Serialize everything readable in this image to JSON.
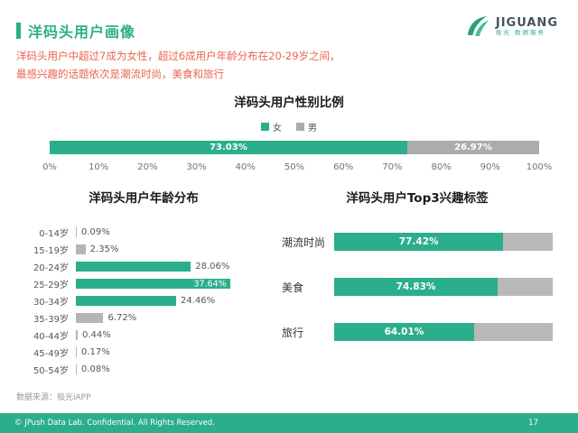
{
  "colors": {
    "teal": "#2BAE8C",
    "orange": "#E8664D",
    "gray_bar": "#B5B5B5"
  },
  "header": {
    "title": "洋码头用户画像",
    "subtitle_line1": "洋码头用户中超过7成为女性，超过6成用户年龄分布在20-29岁之间，",
    "subtitle_line2": "最感兴趣的话题依次是潮流时尚，美食和旅行"
  },
  "logo": {
    "brand": "JIGUANG",
    "tagline": "极光 数据服务"
  },
  "gender_chart": {
    "title": "洋码头用户性别比例",
    "legend": [
      {
        "label": "女",
        "color": "#2BAE8C"
      },
      {
        "label": "男",
        "color": "#ACACAC"
      }
    ],
    "female": {
      "pct": 73.03,
      "pct_label": "73.03%"
    },
    "male": {
      "pct": 26.97,
      "pct_label": "26.97%"
    },
    "axis_ticks": [
      "0%",
      "10%",
      "20%",
      "30%",
      "40%",
      "50%",
      "60%",
      "70%",
      "80%",
      "90%",
      "100%"
    ]
  },
  "age_chart": {
    "title": "洋码头用户年龄分布",
    "rows": [
      {
        "label": "0-14岁",
        "value": "0.09%",
        "pct": 0.09
      },
      {
        "label": "15-19岁",
        "value": "2.35%",
        "pct": 2.35
      },
      {
        "label": "20-24岁",
        "value": "28.06%",
        "pct": 28.06
      },
      {
        "label": "25-29岁",
        "value": "37.64%",
        "pct": 37.64
      },
      {
        "label": "30-34岁",
        "value": "24.46%",
        "pct": 24.46
      },
      {
        "label": "35-39岁",
        "value": "6.72%",
        "pct": 6.72
      },
      {
        "label": "40-44岁",
        "value": "0.44%",
        "pct": 0.44
      },
      {
        "label": "45-49岁",
        "value": "0.17%",
        "pct": 0.17
      },
      {
        "label": "50-54岁",
        "value": "0.08%",
        "pct": 0.08
      }
    ]
  },
  "interest_chart": {
    "title": "洋码头用户Top3兴趣标签",
    "rows": [
      {
        "label": "潮流时尚",
        "value": "77.42%",
        "pct": 77.42
      },
      {
        "label": "美食",
        "value": "74.83%",
        "pct": 74.83
      },
      {
        "label": "旅行",
        "value": "64.01%",
        "pct": 64.01
      }
    ]
  },
  "source_note": "数据来源：极光iAPP",
  "footer": {
    "copyright": "© JPush Data Lab. Confidential. All Rights Reserved.",
    "page_number": "17"
  },
  "chart_data": [
    {
      "type": "bar",
      "title": "洋码头用户性别比例",
      "orientation": "horizontal-stacked",
      "categories": [
        "女",
        "男"
      ],
      "values": [
        73.03,
        26.97
      ],
      "unit": "%",
      "xlim": [
        0,
        100
      ],
      "tick_labels": [
        "0%",
        "10%",
        "20%",
        "30%",
        "40%",
        "50%",
        "60%",
        "70%",
        "80%",
        "90%",
        "100%"
      ],
      "legend_position": "top",
      "grid": false
    },
    {
      "type": "bar",
      "title": "洋码头用户年龄分布",
      "orientation": "horizontal",
      "categories": [
        "0-14岁",
        "15-19岁",
        "20-24岁",
        "25-29岁",
        "30-34岁",
        "35-39岁",
        "40-44岁",
        "45-49岁",
        "50-54岁"
      ],
      "values": [
        0.09,
        2.35,
        28.06,
        37.64,
        24.46,
        6.72,
        0.44,
        0.17,
        0.08
      ],
      "unit": "%",
      "highlighted_categories": [
        "20-24岁",
        "25-29岁",
        "30-34岁"
      ],
      "grid": false
    },
    {
      "type": "bar",
      "title": "洋码头用户Top3兴趣标签",
      "orientation": "horizontal",
      "categories": [
        "潮流时尚",
        "美食",
        "旅行"
      ],
      "values": [
        77.42,
        74.83,
        64.01
      ],
      "unit": "%",
      "xlim": [
        0,
        100
      ],
      "grid": false
    }
  ]
}
